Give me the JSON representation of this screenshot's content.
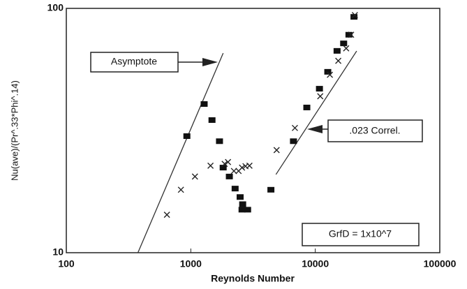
{
  "chart_data": {
    "type": "scatter",
    "xlabel": "Reynolds Number",
    "ylabel": "Nu(ave)/(Pr^.33*Phi^.14)",
    "xscale": "log",
    "yscale": "log",
    "xlim": [
      100,
      100000
    ],
    "ylim": [
      10,
      100
    ],
    "xticks": [
      100,
      1000,
      10000,
      100000
    ],
    "yticks": [
      10,
      100
    ],
    "series": [
      {
        "marker": "square",
        "color": "#111111",
        "x": [
          930,
          1280,
          1480,
          1700,
          1820,
          2040,
          2270,
          2490,
          2610,
          2580,
          2860,
          4400,
          6680,
          8550,
          10800,
          12600,
          14960,
          16900,
          18640,
          20460
        ],
        "values": [
          30,
          40.6,
          34.9,
          28.6,
          22.3,
          20.5,
          18.3,
          16.9,
          15.8,
          15.0,
          15.0,
          18.1,
          28.6,
          39.3,
          46.9,
          55,
          67,
          71.9,
          78,
          92.3
        ]
      },
      {
        "marker": "cross",
        "color": "#222222",
        "x": [
          643,
          833,
          1080,
          1440,
          1870,
          1990,
          2220,
          2420,
          2580,
          2750,
          2960,
          4890,
          6860,
          10960,
          13100,
          15300,
          17700,
          19400,
          20800
        ],
        "values": [
          14.3,
          18.1,
          20.5,
          22.7,
          23.1,
          23.5,
          21.6,
          21.6,
          22.3,
          22.6,
          22.7,
          26.3,
          32.4,
          43.7,
          53.5,
          61,
          68.6,
          78,
          93.9
        ]
      }
    ],
    "lines": [
      {
        "color": "#333333",
        "x": [
          376,
          1820
        ],
        "values": [
          10,
          65.6
        ]
      },
      {
        "color": "#333333",
        "x": [
          4830,
          21500
        ],
        "values": [
          20.9,
          66.9
        ]
      }
    ],
    "annotations": [
      "Asymptote",
      ".023 Correl.",
      "GrfD = 1x10^7"
    ]
  }
}
